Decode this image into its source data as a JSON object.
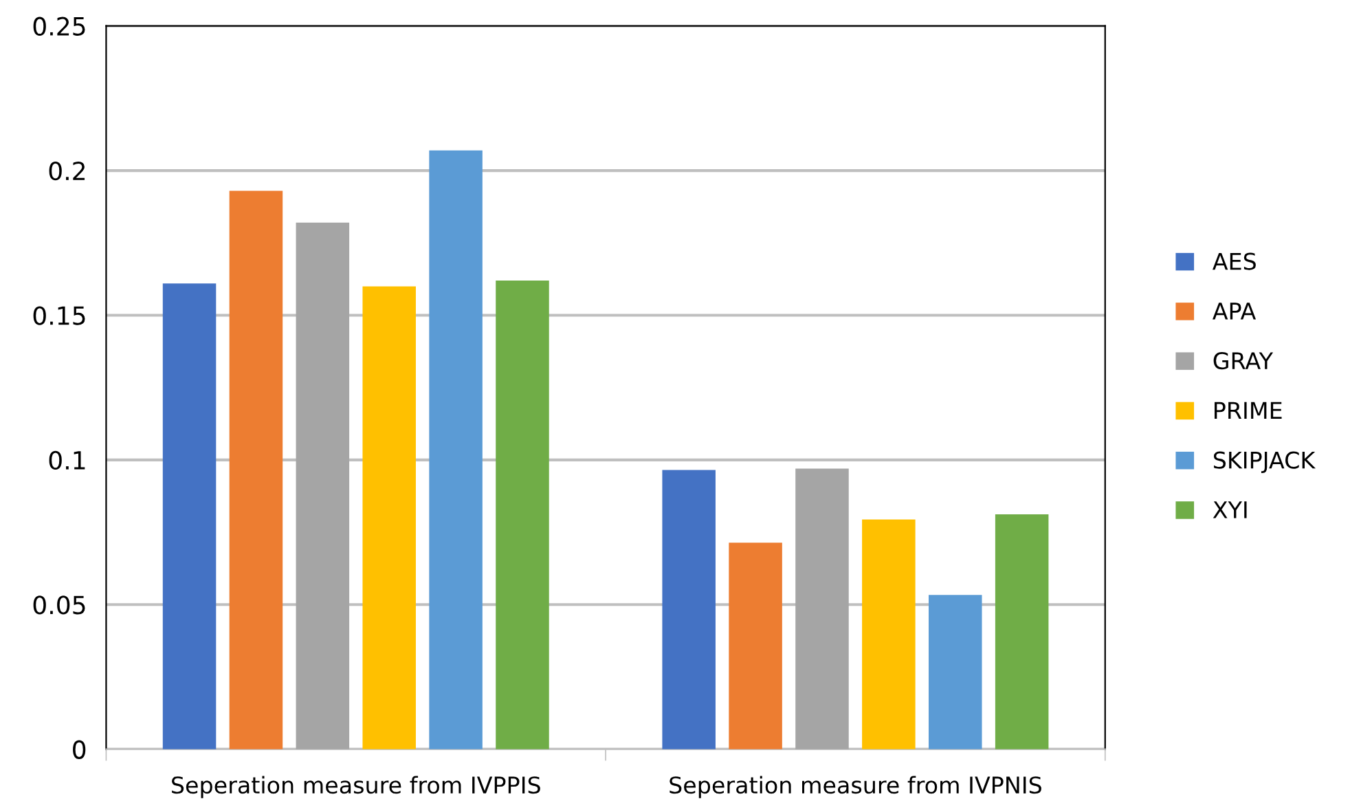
{
  "chart_data": {
    "type": "bar",
    "categories": [
      "Seperation measure from IVPPIS",
      "Seperation measure from IVPNIS"
    ],
    "series": [
      {
        "name": "AES",
        "color": "#4472c4",
        "values": [
          0.161,
          0.0965
        ]
      },
      {
        "name": "APA",
        "color": "#ed7d31",
        "values": [
          0.193,
          0.0714
        ]
      },
      {
        "name": "GRAY",
        "color": "#a5a5a5",
        "values": [
          0.182,
          0.097
        ]
      },
      {
        "name": "PRIME",
        "color": "#ffc000",
        "values": [
          0.16,
          0.0794
        ]
      },
      {
        "name": "SKIPJACK",
        "color": "#5b9bd5",
        "values": [
          0.207,
          0.0533
        ]
      },
      {
        "name": "XYI",
        "color": "#70ad47",
        "values": [
          0.162,
          0.0812
        ]
      }
    ],
    "ylim": [
      0,
      0.25
    ],
    "yticks": [
      {
        "value": 0,
        "label": "0"
      },
      0.05,
      0.1,
      0.15,
      0.2,
      0.25
    ],
    "grid": "y",
    "legend": "right"
  }
}
